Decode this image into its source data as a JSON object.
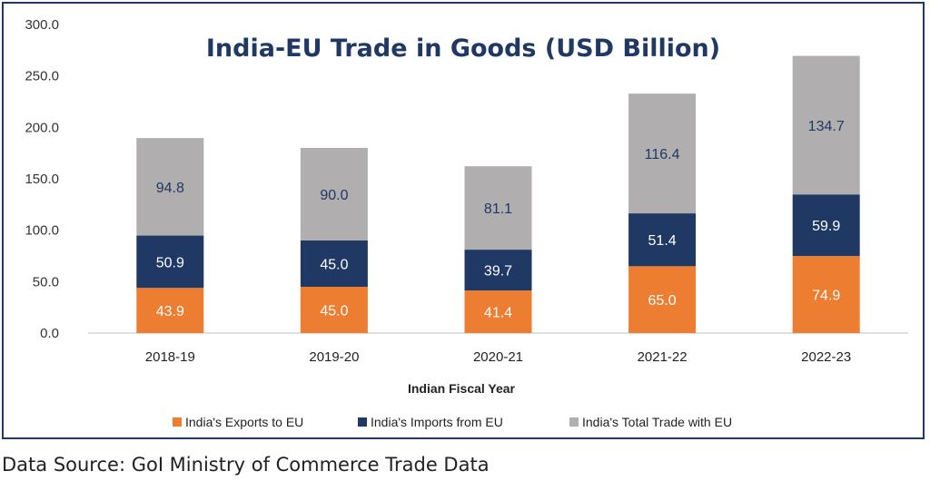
{
  "chart_data": {
    "type": "bar",
    "stacked": true,
    "title": "India-EU Trade in Goods (USD Billion)",
    "xlabel": "Indian Fiscal Year",
    "ylabel": "",
    "ylim": [
      0,
      300
    ],
    "yticks": [
      "0.0",
      "50.0",
      "100.0",
      "150.0",
      "200.0",
      "250.0",
      "300.0"
    ],
    "categories": [
      "2018-19",
      "2019-20",
      "2020-21",
      "2021-22",
      "2022-23"
    ],
    "series": [
      {
        "name": "India's Exports to EU",
        "color": "#ed7d31",
        "values": [
          43.9,
          45.0,
          41.4,
          65.0,
          74.9
        ],
        "labels": [
          "43.9",
          "45.0",
          "41.4",
          "65.0",
          "74.9"
        ]
      },
      {
        "name": "India's Imports from EU",
        "color": "#1f3864",
        "values": [
          50.9,
          45.0,
          39.7,
          51.4,
          59.9
        ],
        "labels": [
          "50.9",
          "45.0",
          "39.7",
          "51.4",
          "59.9"
        ]
      },
      {
        "name": "India's Total Trade with EU",
        "color": "#b0aeae",
        "values": [
          94.8,
          90.0,
          81.1,
          116.4,
          134.7
        ],
        "labels": [
          "94.8",
          "90.0",
          "81.1",
          "116.4",
          "134.7"
        ]
      }
    ],
    "legend_position": "bottom",
    "grid": false
  },
  "footer": {
    "source": "Data Source: GoI Ministry of Commerce Trade Data"
  }
}
